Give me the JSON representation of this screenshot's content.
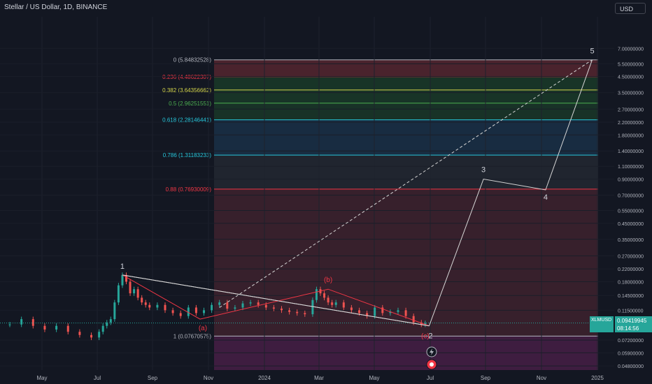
{
  "header": {
    "title": "Stellar / US Dollar, 1D, BINANCE"
  },
  "currency_button": "USD",
  "price_tag": {
    "symbol": "XLMUSD",
    "price": "0.09419945",
    "countdown": "08:14:56"
  },
  "colors": {
    "background": "#131722",
    "candle_up": "#26a69a",
    "candle_down": "#ef5350",
    "zigzag": "#d6d6d6",
    "sub_wave": "#f23645",
    "fib_top_band": "#792e36",
    "fib_mid_band": "#1c3a56",
    "fib_green_band": "#1e4d2b",
    "fib_bottom_band": "#5c2a36",
    "fib_purple_band": "#4a1f48"
  },
  "chart_data": {
    "type": "candlestick",
    "y_scale": "log",
    "ylim": [
      0.045,
      11.5
    ],
    "x_ticks": [
      "May",
      "Jul",
      "Sep",
      "Nov",
      "2024",
      "Mar",
      "May",
      "Jul",
      "Sep",
      "Nov",
      "2025"
    ],
    "y_ticks": [
      "7.00000000",
      "5.50000000",
      "4.50000000",
      "3.50000000",
      "2.70000000",
      "2.20000000",
      "1.80000000",
      "1.40000000",
      "1.10000000",
      "0.90000000",
      "0.70000000",
      "0.55000000",
      "0.45000000",
      "0.35000000",
      "0.27000000",
      "0.22000000",
      "0.18000000",
      "0.14500000",
      "0.11500000",
      "0.09419945",
      "0.07200000",
      "0.05900000",
      "0.04800000"
    ],
    "last_price": 0.09419945,
    "price_series": {
      "x": [
        0,
        3,
        6,
        9,
        12,
        15,
        18,
        21,
        23,
        24,
        25,
        26,
        27,
        28,
        29,
        30,
        31,
        32,
        33,
        34,
        35,
        36,
        38,
        40,
        42,
        44,
        46,
        48,
        50,
        52,
        54,
        56,
        58,
        60,
        62,
        64,
        66,
        68,
        70,
        72,
        74,
        76,
        78,
        79,
        80,
        81,
        82,
        83,
        84,
        86,
        88,
        90,
        92,
        94,
        96,
        98,
        100,
        102,
        104,
        106,
        107
      ],
      "y": [
        0.092,
        0.1,
        0.09,
        0.085,
        0.09,
        0.082,
        0.078,
        0.075,
        0.082,
        0.09,
        0.095,
        0.1,
        0.13,
        0.17,
        0.2,
        0.18,
        0.15,
        0.16,
        0.14,
        0.13,
        0.125,
        0.12,
        0.125,
        0.115,
        0.11,
        0.105,
        0.12,
        0.11,
        0.115,
        0.125,
        0.13,
        0.118,
        0.12,
        0.128,
        0.13,
        0.125,
        0.12,
        0.118,
        0.115,
        0.112,
        0.11,
        0.108,
        0.135,
        0.16,
        0.15,
        0.14,
        0.13,
        0.125,
        0.13,
        0.12,
        0.115,
        0.11,
        0.105,
        0.12,
        0.11,
        0.112,
        0.115,
        0.105,
        0.095,
        0.092,
        0.094
      ]
    },
    "fibonacci": [
      {
        "ratio": "0",
        "label": "0 (5.84832528)",
        "value": 5.84832528,
        "color": "#b2b5be"
      },
      {
        "ratio": "0.236",
        "label": "0.236 (4.48622307)",
        "value": 4.48622307,
        "color": "#f23645"
      },
      {
        "ratio": "0.382",
        "label": "0.382 (3.64356662)",
        "value": 3.64356662,
        "color": "#d4d44a"
      },
      {
        "ratio": "0.5",
        "label": "0.5 (2.96251551)",
        "value": 2.96251551,
        "color": "#4caf50"
      },
      {
        "ratio": "0.618",
        "label": "0.618 (2.28146441)",
        "value": 2.28146441,
        "color": "#26c6da"
      },
      {
        "ratio": "0.786",
        "label": "0.786 (1.31183233)",
        "value": 1.31183233,
        "color": "#26c6da"
      },
      {
        "ratio": "0.88",
        "label": "0.88 (0.76930009)",
        "value": 0.76930009,
        "color": "#f23645"
      },
      {
        "ratio": "1",
        "label": "1 (0.07670575)",
        "value": 0.07670575,
        "color": "#b2b5be"
      }
    ],
    "wave_labels": [
      {
        "text": "1",
        "x": 29,
        "y": 0.2
      },
      {
        "text": "2",
        "x": 108,
        "y": 0.09
      },
      {
        "text": "3",
        "x": 122,
        "y": 0.9
      },
      {
        "text": "4",
        "x": 138,
        "y": 0.76
      },
      {
        "text": "5",
        "x": 150,
        "y": 5.85
      }
    ],
    "sub_wave_labels": [
      {
        "text": "(a)",
        "x": 49,
        "y": 0.1
      },
      {
        "text": "(b)",
        "x": 82,
        "y": 0.16
      },
      {
        "text": "(c)",
        "x": 107,
        "y": 0.09
      }
    ],
    "zigzag_path": {
      "x": [
        29,
        108,
        122,
        138,
        150
      ],
      "y": [
        0.2,
        0.09,
        0.9,
        0.76,
        5.85
      ]
    },
    "wedge_lines": [
      {
        "x": [
          29,
          108
        ],
        "y": [
          0.2,
          0.09
        ]
      }
    ],
    "sub_wave_path": {
      "x": [
        29,
        49,
        82,
        108
      ],
      "y": [
        0.2,
        0.1,
        0.16,
        0.09
      ]
    },
    "dashed_target_line": {
      "x": [
        54,
        150
      ],
      "y": [
        0.12,
        5.85
      ]
    }
  }
}
